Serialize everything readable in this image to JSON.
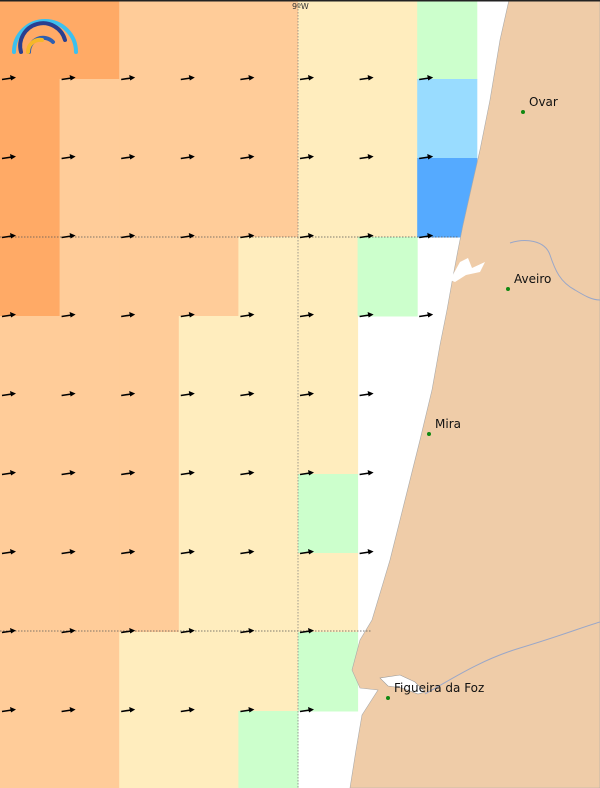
{
  "map": {
    "graticule": {
      "longitude_label": "9ºW"
    },
    "colors": {
      "dark_orange": "#ffaa66",
      "light_orange": "#ffcc99",
      "yellow": "#ffedbe",
      "green": "#ccffcc",
      "light_blue": "#99dcff",
      "blue": "#55aaff",
      "land": "#efcca8",
      "sea": "#ffffff"
    },
    "grid_rows": [
      [
        "dark_orange",
        "dark_orange",
        "light_orange",
        "light_orange",
        "light_orange",
        "yellow",
        "yellow",
        "green"
      ],
      [
        "dark_orange",
        "light_orange",
        "light_orange",
        "light_orange",
        "light_orange",
        "yellow",
        "yellow",
        "light_blue"
      ],
      [
        "dark_orange",
        "light_orange",
        "light_orange",
        "light_orange",
        "light_orange",
        "yellow",
        "yellow",
        "blue"
      ],
      [
        "dark_orange",
        "light_orange",
        "light_orange",
        "light_orange",
        "yellow",
        "yellow",
        "green",
        null
      ],
      [
        "light_orange",
        "light_orange",
        "light_orange",
        "yellow",
        "yellow",
        "yellow",
        null,
        null
      ],
      [
        "light_orange",
        "light_orange",
        "light_orange",
        "yellow",
        "yellow",
        "yellow",
        null,
        null
      ],
      [
        "light_orange",
        "light_orange",
        "light_orange",
        "yellow",
        "yellow",
        "green",
        null,
        null
      ],
      [
        "light_orange",
        "light_orange",
        "light_orange",
        "yellow",
        "yellow",
        "yellow",
        null,
        null
      ],
      [
        "light_orange",
        "light_orange",
        "yellow",
        "yellow",
        "yellow",
        "green",
        null,
        null
      ],
      [
        "light_orange",
        "light_orange",
        "yellow",
        "yellow",
        "green",
        null,
        null,
        null
      ]
    ],
    "wind_direction": "east",
    "cities": [
      {
        "name": "Ovar"
      },
      {
        "name": "Aveiro"
      },
      {
        "name": "Mira"
      },
      {
        "name": "Figueira da Foz"
      }
    ],
    "logo_icon": "rainbow-arcs-logo-icon"
  }
}
